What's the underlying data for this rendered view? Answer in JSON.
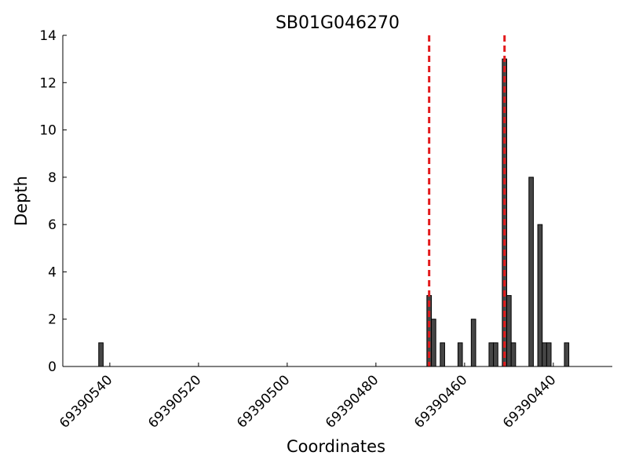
{
  "chart_data": {
    "type": "bar",
    "title": "SB01G046270",
    "xlabel": "Coordinates",
    "ylabel": "Depth",
    "x": [
      69390542,
      69390468,
      69390467,
      69390465,
      69390461,
      69390458,
      69390454,
      69390453,
      69390451,
      69390450,
      69390449,
      69390445,
      69390443,
      69390442,
      69390441,
      69390437
    ],
    "values": [
      1,
      3,
      2,
      1,
      1,
      2,
      1,
      1,
      13,
      3,
      1,
      8,
      6,
      1,
      1,
      1
    ],
    "color": "#464646",
    "edge_color": "#000000",
    "vlines": [
      69390468,
      69390451
    ],
    "vline_color": "#e31a1c",
    "xlim": [
      69390550.6,
      69390426.7
    ],
    "xticks": [
      69390540,
      69390520,
      69390500,
      69390480,
      69390460,
      69390440
    ],
    "ylim": [
      0,
      14
    ],
    "yticks": [
      0,
      2,
      4,
      6,
      8,
      10,
      12,
      14
    ],
    "grid": false
  }
}
